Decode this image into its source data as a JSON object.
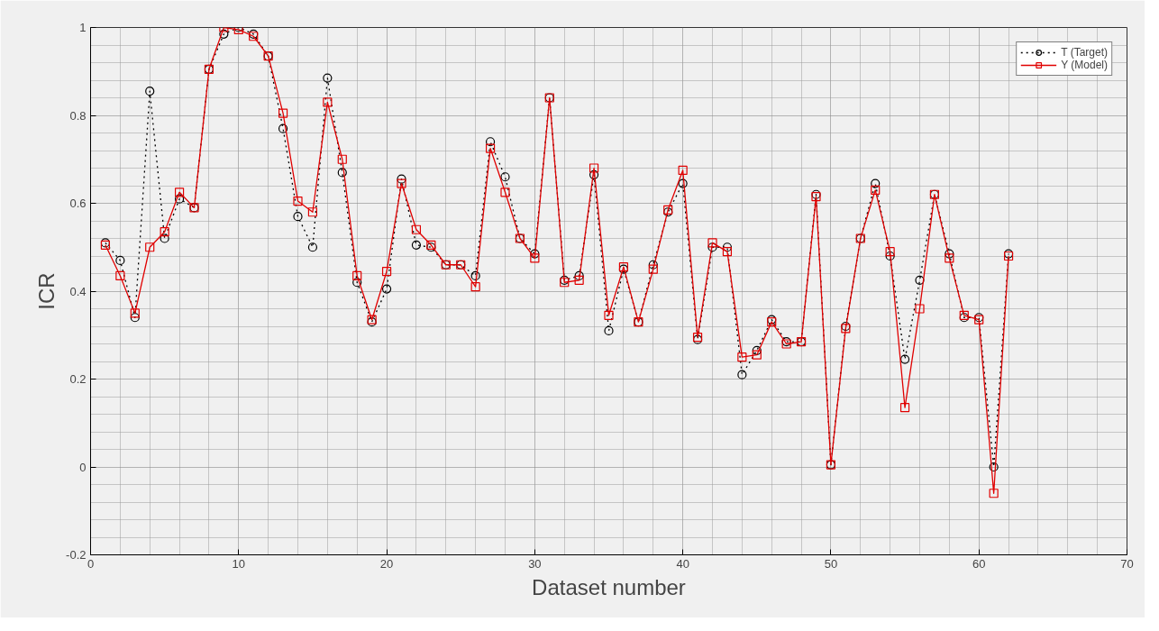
{
  "chart_data": {
    "type": "line",
    "xlabel": "Dataset number",
    "ylabel": "ICR",
    "x": [
      1,
      2,
      3,
      4,
      5,
      6,
      7,
      8,
      9,
      10,
      11,
      12,
      13,
      14,
      15,
      16,
      17,
      18,
      19,
      20,
      21,
      22,
      23,
      24,
      25,
      26,
      27,
      28,
      29,
      30,
      31,
      32,
      33,
      34,
      35,
      36,
      37,
      38,
      39,
      40,
      41,
      42,
      43,
      44,
      45,
      46,
      47,
      48,
      49,
      50,
      51,
      52,
      53,
      54,
      55,
      56,
      57,
      58,
      59,
      60,
      61,
      62
    ],
    "series": [
      {
        "name": "T (Target)",
        "color": "#000000",
        "marker": "circle",
        "line_style": "dotted",
        "values": [
          0.51,
          0.47,
          0.34,
          0.855,
          0.52,
          0.61,
          0.59,
          0.905,
          0.985,
          1.0,
          0.985,
          0.935,
          0.77,
          0.57,
          0.5,
          0.885,
          0.67,
          0.42,
          0.33,
          0.405,
          0.655,
          0.505,
          0.5,
          0.46,
          0.46,
          0.435,
          0.74,
          0.66,
          0.52,
          0.485,
          0.84,
          0.425,
          0.435,
          0.665,
          0.31,
          0.45,
          0.33,
          0.46,
          0.58,
          0.645,
          0.29,
          0.5,
          0.5,
          0.21,
          0.265,
          0.335,
          0.285,
          0.285,
          0.62,
          0.005,
          0.32,
          0.52,
          0.645,
          0.48,
          0.245,
          0.425,
          0.62,
          0.485,
          0.34,
          0.34,
          0.0,
          0.485
        ]
      },
      {
        "name": "Y (Model)",
        "color": "#e00000",
        "marker": "square",
        "line_style": "solid",
        "values": [
          0.505,
          0.435,
          0.35,
          0.5,
          0.535,
          0.625,
          0.59,
          0.905,
          1.0,
          0.995,
          0.98,
          0.935,
          0.805,
          0.605,
          0.58,
          0.83,
          0.7,
          0.435,
          0.335,
          0.445,
          0.645,
          0.54,
          0.505,
          0.46,
          0.46,
          0.41,
          0.725,
          0.625,
          0.52,
          0.475,
          0.84,
          0.42,
          0.425,
          0.68,
          0.345,
          0.455,
          0.33,
          0.45,
          0.585,
          0.675,
          0.295,
          0.51,
          0.49,
          0.25,
          0.255,
          0.33,
          0.28,
          0.285,
          0.615,
          0.005,
          0.315,
          0.52,
          0.63,
          0.49,
          0.135,
          0.36,
          0.62,
          0.475,
          0.345,
          0.335,
          -0.06,
          0.48
        ]
      }
    ],
    "xlim": [
      0,
      70
    ],
    "xticks": [
      0,
      10,
      20,
      30,
      40,
      50,
      60,
      70
    ],
    "ylim": [
      -0.2,
      1
    ],
    "yticks": [
      -0.2,
      0,
      0.2,
      0.4,
      0.6,
      0.8,
      1
    ],
    "grid": true,
    "legend": "top right"
  }
}
